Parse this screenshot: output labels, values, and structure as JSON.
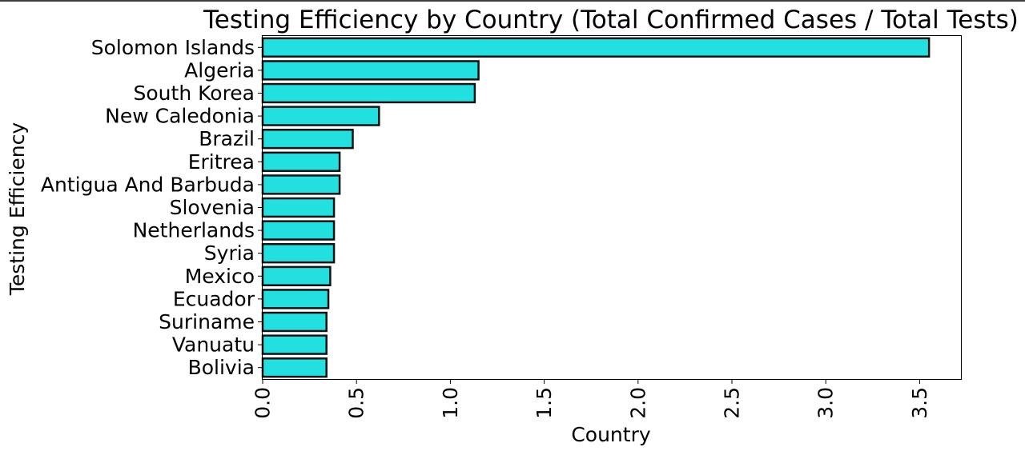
{
  "chart_data": {
    "type": "bar",
    "orientation": "horizontal",
    "title": "Testing Efficiency by Country (Total Confirmed Cases / Total Tests)",
    "xlabel": "Country",
    "ylabel": "Testing Efficiency",
    "categories": [
      "Solomon Islands",
      "Algeria",
      "South Korea",
      "New Caledonia",
      "Brazil",
      "Eritrea",
      "Antigua And Barbuda",
      "Slovenia",
      "Netherlands",
      "Syria",
      "Mexico",
      "Ecuador",
      "Suriname",
      "Vanuatu",
      "Bolivia"
    ],
    "values": [
      3.55,
      1.15,
      1.13,
      0.62,
      0.48,
      0.41,
      0.41,
      0.38,
      0.38,
      0.38,
      0.36,
      0.35,
      0.34,
      0.34,
      0.34
    ],
    "xlim": [
      0,
      3.72
    ],
    "xticks": [
      "0.0",
      "0.5",
      "1.0",
      "1.5",
      "2.0",
      "2.5",
      "3.0",
      "3.5"
    ],
    "tick_values": [
      0,
      0.5,
      1.0,
      1.5,
      2.0,
      2.5,
      3.0,
      3.5
    ],
    "tick_label_rotation": 90,
    "grid": false,
    "bar_color": "#22e0e0",
    "bar_edge_color": "#111111"
  }
}
